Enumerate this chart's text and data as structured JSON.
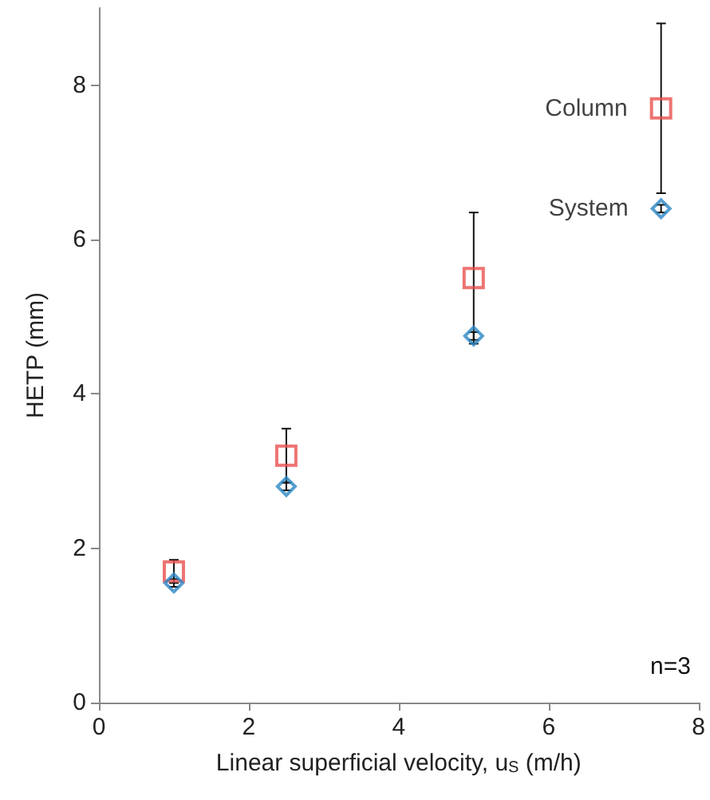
{
  "chart_data": {
    "type": "scatter",
    "xlabel": "Linear superficial velocity, u$_{S}$ (m/h)",
    "ylabel": "HETP (mm)",
    "x": [
      1,
      2.5,
      5,
      7.5
    ],
    "series": [
      {
        "name": "Column",
        "color": "#e8514f",
        "marker": "square",
        "values": [
          1.7,
          3.2,
          5.5,
          7.7
        ],
        "errors": [
          0.15,
          0.35,
          0.85,
          1.1
        ]
      },
      {
        "name": "System",
        "color": "#2a86c4",
        "marker": "diamond",
        "values": [
          1.55,
          2.8,
          4.75,
          6.4
        ],
        "errors": [
          0.05,
          0.05,
          0.05,
          0.05
        ]
      }
    ],
    "xlim": [
      0,
      8
    ],
    "xticks": [
      0,
      2,
      4,
      6,
      8
    ],
    "ylim": [
      0,
      9
    ],
    "yticks": [
      0,
      2,
      4,
      6,
      8
    ],
    "grid": false,
    "legend": false,
    "annotations": [
      "n=3"
    ]
  }
}
